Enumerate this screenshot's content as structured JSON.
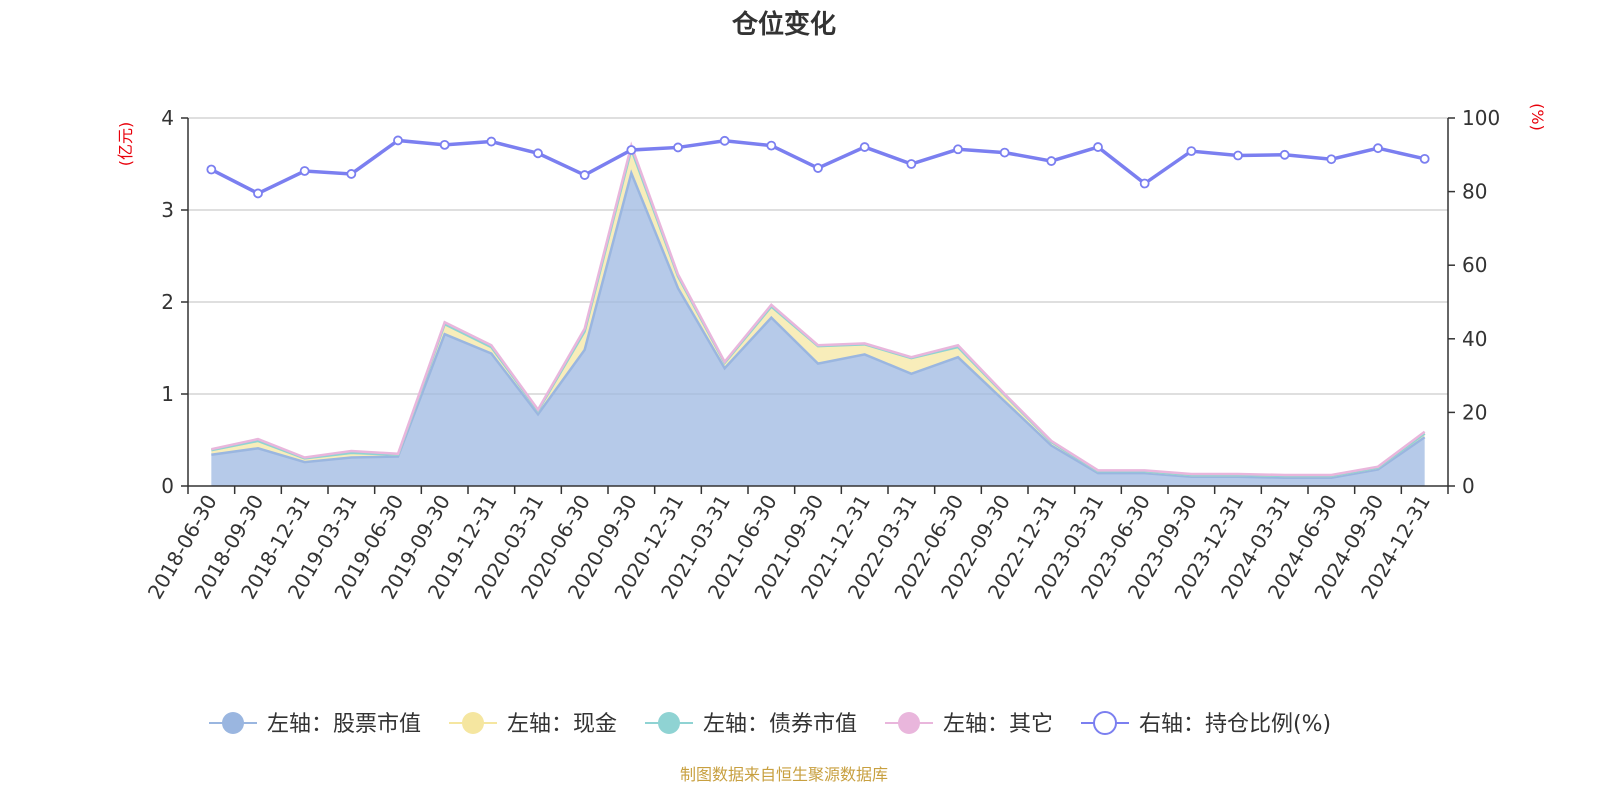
{
  "chart_data": {
    "type": "area",
    "title": "仓位变化",
    "left_axis": {
      "unit": "(亿元)",
      "ylim": [
        0,
        4
      ],
      "ticks": [
        0,
        1,
        2,
        3,
        4
      ]
    },
    "right_axis": {
      "unit": "(%)",
      "ylim": [
        0,
        100
      ],
      "ticks": [
        0,
        20,
        40,
        60,
        80,
        100
      ]
    },
    "categories": [
      "2018-06-30",
      "2018-09-30",
      "2018-12-31",
      "2019-03-31",
      "2019-06-30",
      "2019-09-30",
      "2019-12-31",
      "2020-03-31",
      "2020-06-30",
      "2020-09-30",
      "2020-12-31",
      "2021-03-31",
      "2021-06-30",
      "2021-09-30",
      "2021-12-31",
      "2022-03-31",
      "2022-06-30",
      "2022-09-30",
      "2022-12-31",
      "2023-03-31",
      "2023-06-30",
      "2023-09-30",
      "2023-12-31",
      "2024-03-31",
      "2024-06-30",
      "2024-09-30",
      "2024-12-31"
    ],
    "series": [
      {
        "name": "左轴：股票市值",
        "axis": "left",
        "color": "#9ab6e0",
        "values": [
          0.34,
          0.41,
          0.26,
          0.31,
          0.32,
          1.65,
          1.44,
          0.78,
          1.48,
          3.4,
          2.15,
          1.28,
          1.83,
          1.33,
          1.43,
          1.22,
          1.4,
          0.92,
          0.44,
          0.14,
          0.14,
          0.1,
          0.1,
          0.09,
          0.09,
          0.18,
          0.53
        ]
      },
      {
        "name": "左轴：现金",
        "axis": "left",
        "color": "#f5e6a0",
        "values": [
          0.05,
          0.08,
          0.04,
          0.05,
          0.02,
          0.11,
          0.07,
          0.04,
          0.2,
          0.26,
          0.13,
          0.06,
          0.12,
          0.19,
          0.11,
          0.17,
          0.11,
          0.07,
          0.04,
          0.02,
          0.02,
          0.02,
          0.02,
          0.02,
          0.02,
          0.02,
          0.04
        ]
      },
      {
        "name": "左轴：债券市值",
        "axis": "left",
        "color": "#8fd3d3",
        "values": [
          0,
          0,
          0,
          0,
          0,
          0,
          0,
          0,
          0,
          0,
          0,
          0,
          0,
          0,
          0,
          0,
          0,
          0,
          0,
          0,
          0,
          0,
          0,
          0,
          0,
          0,
          0
        ]
      },
      {
        "name": "左轴：其它",
        "axis": "left",
        "color": "#e9b6dc",
        "values": [
          0.01,
          0.02,
          0.01,
          0.02,
          0.01,
          0.02,
          0.02,
          0.01,
          0.03,
          0.04,
          0.02,
          0.01,
          0.02,
          0.01,
          0.01,
          0.01,
          0.02,
          0.01,
          0.01,
          0.01,
          0.01,
          0.01,
          0.01,
          0.01,
          0.01,
          0.01,
          0.02
        ]
      },
      {
        "name": "右轴：持仓比例(%)",
        "axis": "right",
        "color": "#7b7ff0",
        "values": [
          86.0,
          79.5,
          85.6,
          84.8,
          93.9,
          92.7,
          93.6,
          90.4,
          84.5,
          91.3,
          92.0,
          93.8,
          92.5,
          86.4,
          92.1,
          87.5,
          91.5,
          90.6,
          88.3,
          92.1,
          82.2,
          91.0,
          89.8,
          90.0,
          88.8,
          91.8,
          88.9
        ]
      }
    ],
    "legend_position": "bottom",
    "grid": true
  },
  "source_text": "制图数据来自恒生聚源数据库"
}
